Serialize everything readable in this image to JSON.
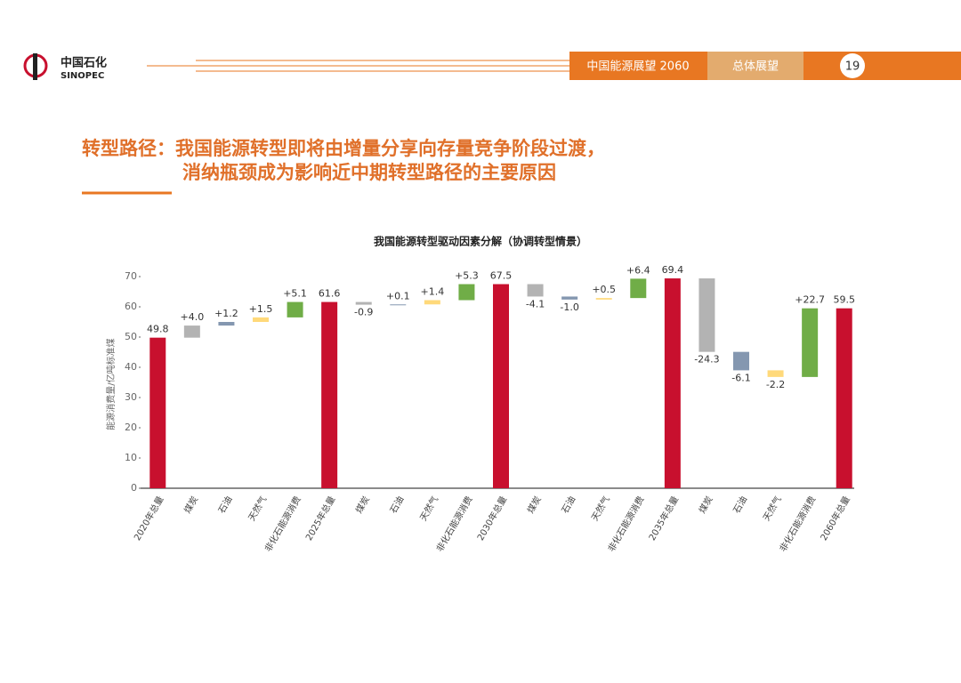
{
  "header": {
    "logo_cn": "中国石化",
    "logo_en": "SINOPEC",
    "section": "中国能源展望 2060",
    "subsection": "总体展望",
    "page": "19"
  },
  "headline": [
    "转型路径：我国能源转型即将由增量分享向存量竞争阶段过渡，",
    "消纳瓶颈成为影响近中期转型路径的主要原因"
  ],
  "chart_data": {
    "type": "waterfall",
    "title": "我国能源转型驱动因素分解（协调转型情景）",
    "y_label": "能源消费量/亿吨标准煤",
    "categories": [
      "2020年总量",
      "煤炭",
      "石油",
      "天然气",
      "非化石能源消费",
      "2025年总量",
      "煤炭",
      "石油",
      "天然气",
      "非化石能源消费",
      "2030年总量",
      "煤炭",
      "石油",
      "天然气",
      "非化石能源消费",
      "2035年总量",
      "煤炭",
      "石油",
      "天然气",
      "非化石能源消费",
      "2060年总量"
    ],
    "values": [
      49.8,
      4.0,
      1.2,
      1.5,
      5.1,
      61.6,
      -0.9,
      0.1,
      1.4,
      5.3,
      67.5,
      -4.1,
      -1.0,
      0.5,
      6.4,
      69.4,
      -24.3,
      -6.1,
      -2.2,
      22.7,
      59.5
    ],
    "value_labels": [
      "49.8",
      "+4.0",
      "+1.2",
      "+1.5",
      "+5.1",
      "61.6",
      "-0.9",
      "+0.1",
      "+1.4",
      "+5.3",
      "67.5",
      "-4.1",
      "-1.0",
      "+0.5",
      "+6.4",
      "69.4",
      "-24.3",
      "-6.1",
      "-2.2",
      "+22.7",
      "59.5"
    ],
    "is_total": [
      true,
      false,
      false,
      false,
      false,
      true,
      false,
      false,
      false,
      false,
      true,
      false,
      false,
      false,
      false,
      true,
      false,
      false,
      false,
      false,
      true
    ],
    "colors": [
      "#c8102e",
      "#b3b3b3",
      "#8497b0",
      "#ffd97a",
      "#70ad47",
      "#c8102e",
      "#b3b3b3",
      "#8497b0",
      "#ffd97a",
      "#70ad47",
      "#c8102e",
      "#b3b3b3",
      "#8497b0",
      "#ffd97a",
      "#70ad47",
      "#c8102e",
      "#b3b3b3",
      "#8497b0",
      "#ffd97a",
      "#70ad47",
      "#c8102e"
    ],
    "ylim": [
      0,
      70
    ],
    "yticks": [
      0,
      10,
      20,
      30,
      40,
      50,
      60,
      70
    ]
  }
}
